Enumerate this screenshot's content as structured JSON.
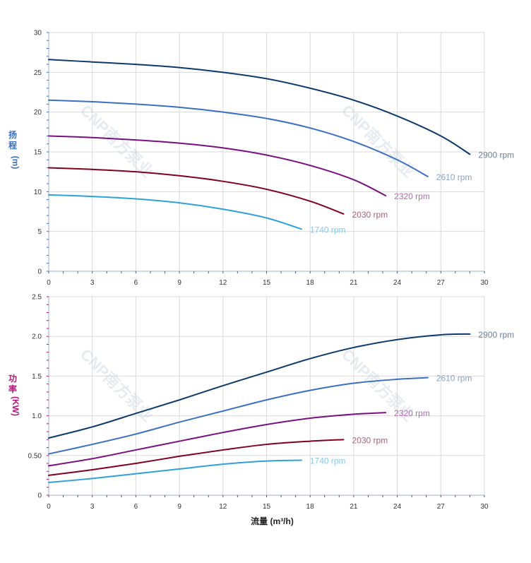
{
  "chart_data": [
    {
      "type": "line",
      "name": "head",
      "ylabel_chars": [
        "扬",
        "程"
      ],
      "ylabel_unit": "(m)",
      "ylabel_color": "#3a6fc4",
      "xlim": [
        0,
        30
      ],
      "ylim": [
        0,
        30
      ],
      "xticks": [
        0,
        3,
        6,
        9,
        12,
        15,
        18,
        21,
        24,
        27,
        30
      ],
      "yticks": [
        0,
        5,
        10,
        15,
        20,
        25,
        30
      ],
      "grid": true,
      "series": [
        {
          "name": "2900 rpm",
          "color": "#0d3a6b",
          "label_color": "#6a7f95",
          "x": [
            0,
            3,
            6,
            9,
            12,
            15,
            18,
            21,
            24,
            27,
            29
          ],
          "y": [
            26.6,
            26.3,
            26.0,
            25.6,
            25.0,
            24.2,
            23.0,
            21.5,
            19.5,
            17.0,
            14.7
          ]
        },
        {
          "name": "2610 rpm",
          "color": "#3a6fc4",
          "label_color": "#8aa3cc",
          "x": [
            0,
            3,
            6,
            9,
            12,
            15,
            18,
            21,
            24,
            26.1
          ],
          "y": [
            21.5,
            21.3,
            21.0,
            20.6,
            20.0,
            19.2,
            18.0,
            16.3,
            14.0,
            11.9
          ]
        },
        {
          "name": "2320 rpm",
          "color": "#7a1080",
          "label_color": "#b06cb5",
          "x": [
            0,
            3,
            6,
            9,
            12,
            15,
            18,
            21,
            23.2
          ],
          "y": [
            17.0,
            16.8,
            16.5,
            16.1,
            15.5,
            14.6,
            13.3,
            11.5,
            9.5
          ]
        },
        {
          "name": "2030 rpm",
          "color": "#800020",
          "label_color": "#b06070",
          "x": [
            0,
            3,
            6,
            9,
            12,
            15,
            18,
            20.3
          ],
          "y": [
            13.0,
            12.8,
            12.5,
            12.0,
            11.3,
            10.3,
            8.8,
            7.2
          ]
        },
        {
          "name": "1740 rpm",
          "color": "#2fa0dc",
          "label_color": "#8cc8ea",
          "x": [
            0,
            3,
            6,
            9,
            12,
            15,
            17.4
          ],
          "y": [
            9.6,
            9.4,
            9.1,
            8.6,
            7.8,
            6.7,
            5.3
          ]
        }
      ]
    },
    {
      "type": "line",
      "name": "power",
      "ylabel_chars": [
        "功",
        "率"
      ],
      "ylabel_unit": "(KW)",
      "ylabel_color": "#b0187a",
      "xlabel": "流量 (m³/h)",
      "xlim": [
        0,
        30
      ],
      "ylim": [
        0,
        2.5
      ],
      "xticks": [
        0,
        3,
        6,
        9,
        12,
        15,
        18,
        21,
        24,
        27,
        30
      ],
      "yticks": [
        0,
        0.5,
        1.0,
        1.5,
        2.0,
        2.5
      ],
      "ytick_labels": [
        "0",
        "0.50",
        "1.0",
        "1.5",
        "2.0",
        "2.5"
      ],
      "grid": true,
      "series": [
        {
          "name": "2900 rpm",
          "color": "#0d3a6b",
          "label_color": "#6a7f95",
          "x": [
            0,
            3,
            6,
            9,
            12,
            15,
            18,
            21,
            24,
            27,
            29
          ],
          "y": [
            0.72,
            0.86,
            1.03,
            1.2,
            1.38,
            1.55,
            1.72,
            1.86,
            1.96,
            2.02,
            2.03
          ]
        },
        {
          "name": "2610 rpm",
          "color": "#3a6fc4",
          "label_color": "#8aa3cc",
          "x": [
            0,
            3,
            6,
            9,
            12,
            15,
            18,
            21,
            24,
            26.1
          ],
          "y": [
            0.52,
            0.64,
            0.77,
            0.92,
            1.06,
            1.2,
            1.32,
            1.41,
            1.46,
            1.48
          ]
        },
        {
          "name": "2320 rpm",
          "color": "#7a1080",
          "label_color": "#b06cb5",
          "x": [
            0,
            3,
            6,
            9,
            12,
            15,
            18,
            21,
            23.2
          ],
          "y": [
            0.37,
            0.46,
            0.57,
            0.68,
            0.79,
            0.89,
            0.97,
            1.02,
            1.04
          ]
        },
        {
          "name": "2030 rpm",
          "color": "#800020",
          "label_color": "#b06070",
          "x": [
            0,
            3,
            6,
            9,
            12,
            15,
            18,
            20.3
          ],
          "y": [
            0.25,
            0.32,
            0.4,
            0.49,
            0.57,
            0.64,
            0.68,
            0.7
          ]
        },
        {
          "name": "1740 rpm",
          "color": "#2fa0dc",
          "label_color": "#8cc8ea",
          "x": [
            0,
            3,
            6,
            9,
            12,
            15,
            17.4
          ],
          "y": [
            0.16,
            0.21,
            0.27,
            0.33,
            0.39,
            0.43,
            0.44
          ]
        }
      ]
    }
  ],
  "watermark": {
    "text": "CNP南方泵业"
  }
}
